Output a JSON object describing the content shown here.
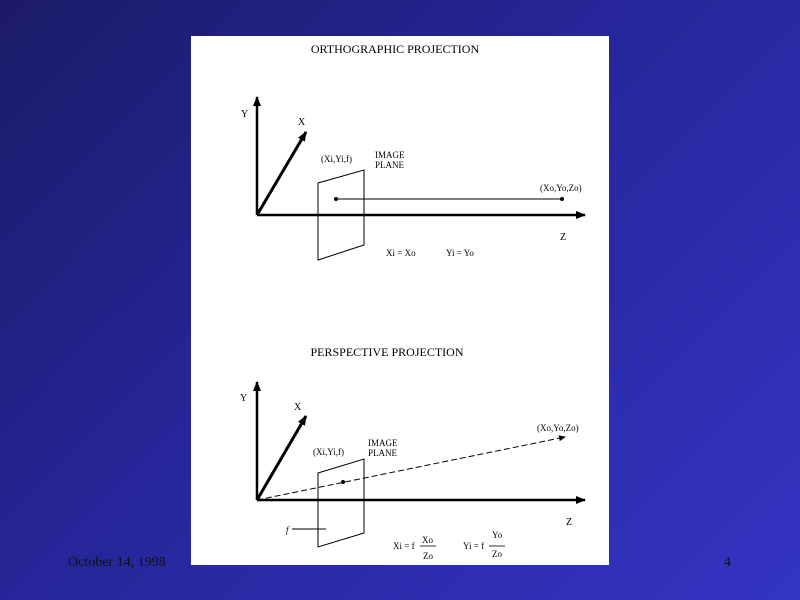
{
  "orthographic": {
    "title": "ORTHOGRAPHIC  PROJECTION",
    "axis_y": "Y",
    "axis_x": "X",
    "axis_z": "Z",
    "image_point": "(Xi,Yi,f)",
    "plane_label_1": "IMAGE",
    "plane_label_2": "PLANE",
    "object_point": "(Xo,Yo,Zo)",
    "eq_x": "Xi = Xo",
    "eq_y": "Yi = Yo"
  },
  "perspective": {
    "title": "PERSPECTIVE  PROJECTION",
    "axis_y": "Y",
    "axis_x": "X",
    "axis_z": "Z",
    "image_point": "(Xi,Yi,f)",
    "plane_label_1": "IMAGE",
    "plane_label_2": "PLANE",
    "object_point": "(Xo,Yo,Zo)",
    "focal_label": "f",
    "eq_x_lhs": "Xi = f",
    "eq_x_num": "Xo",
    "eq_x_den": "Zo",
    "eq_y_lhs": "Yi = f",
    "eq_y_num": "Yo",
    "eq_y_den": "Zo"
  },
  "footer": {
    "date": "October 14, 1998",
    "page": "4"
  }
}
